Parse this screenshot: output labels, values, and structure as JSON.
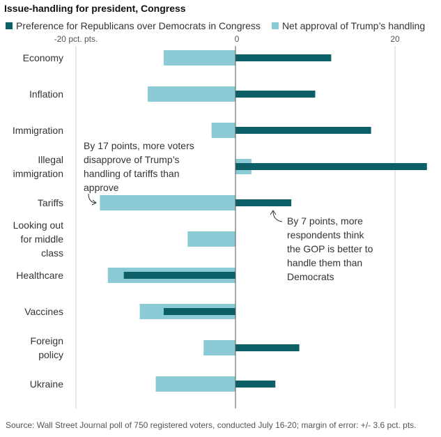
{
  "title": "Issue-handling for president, Congress",
  "legend": [
    {
      "name": "Preference for Republicans over Democrats in Congress",
      "color": "#0d5f67"
    },
    {
      "name": "Net approval of Trump’s handling",
      "color": "#8bcbd6"
    }
  ],
  "source": "Source: Wall Street Journal poll of 750 registered voters, conducted July 16-20; margin of error: +/- 3.6 pct. pts.",
  "chart_data": {
    "type": "bar",
    "orientation": "horizontal",
    "categories": [
      [
        "Economy"
      ],
      [
        "Inflation"
      ],
      [
        "Immigration"
      ],
      [
        "Illegal",
        "immigration"
      ],
      [
        "Tariffs"
      ],
      [
        "Looking out",
        "for middle",
        "class"
      ],
      [
        "Healthcare"
      ],
      [
        "Vaccines"
      ],
      [
        "Foreign",
        "policy"
      ],
      [
        "Ukraine"
      ]
    ],
    "series": [
      {
        "name": "Net approval of Trump’s handling",
        "color": "#8bcbd6",
        "values": [
          -9,
          -11,
          -3,
          2,
          -17,
          -6,
          -16,
          -12,
          -4,
          -10
        ]
      },
      {
        "name": "Preference for Republicans over Democrats in Congress",
        "color": "#0d5f67",
        "values": [
          12,
          10,
          17,
          24,
          7,
          null,
          -14,
          -9,
          8,
          5
        ]
      }
    ],
    "xlim": [
      -20,
      24
    ],
    "ticks": [
      {
        "value": -20,
        "label": "-20 pct. pts."
      },
      {
        "value": 0,
        "label": "0"
      },
      {
        "value": 20,
        "label": "20"
      }
    ],
    "annotations": [
      {
        "category": "Tariffs",
        "series": "Net approval of Trump’s handling",
        "lines": [
          "By 17 points, more voters",
          "disapprove of Trump’s",
          "handling of tariffs than",
          "approve"
        ]
      },
      {
        "category": "Tariffs",
        "series": "Preference for Republicans over Democrats in Congress",
        "lines": [
          "By 7 points, more",
          "respondents think",
          "the GOP is better to",
          "handle them than",
          "Democrats"
        ]
      }
    ],
    "grid": true,
    "legend_position": "top"
  }
}
